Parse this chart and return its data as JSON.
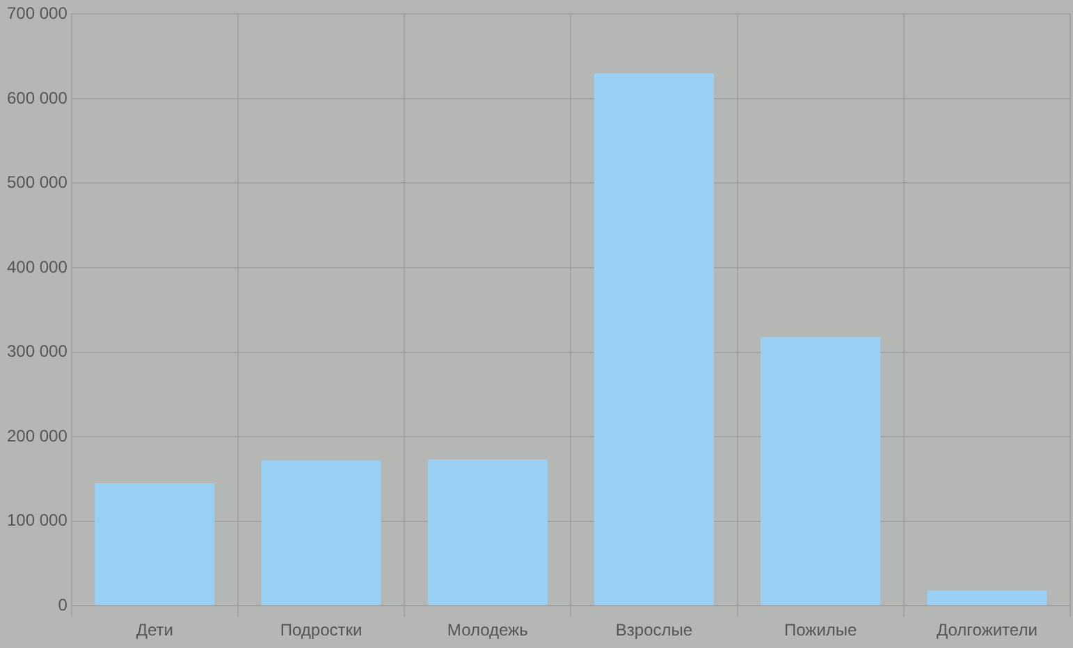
{
  "chart_data": {
    "type": "bar",
    "categories": [
      "Дети",
      "Подростки",
      "Молодежь",
      "Взрослые",
      "Пожилые",
      "Долгожители"
    ],
    "values": [
      145000,
      172000,
      173000,
      630000,
      318000,
      18000
    ],
    "color": "#99cff3",
    "ylim": [
      0,
      700000
    ],
    "yticks": [
      {
        "value": 0,
        "label": "0"
      },
      {
        "value": 100000,
        "label": "100 000"
      },
      {
        "value": 200000,
        "label": "200 000"
      },
      {
        "value": 300000,
        "label": "300 000"
      },
      {
        "value": 400000,
        "label": "400 000"
      },
      {
        "value": 500000,
        "label": "500 000"
      },
      {
        "value": 600000,
        "label": "600 000"
      },
      {
        "value": 700000,
        "label": "700 000"
      }
    ],
    "grid": true,
    "legend": false
  }
}
